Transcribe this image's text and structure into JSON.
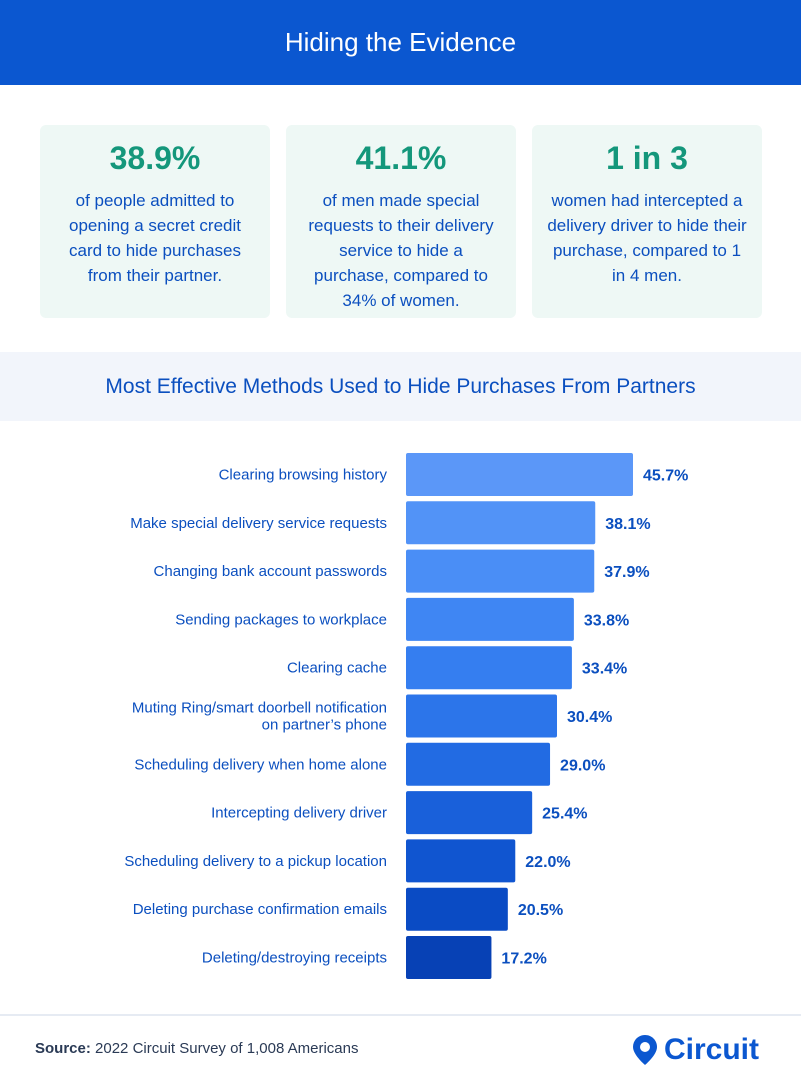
{
  "header": {
    "title": "Hiding the Evidence"
  },
  "stats": [
    {
      "value": "38.9%",
      "description": "of people admitted to opening a secret credit card to hide purchases from their partner."
    },
    {
      "value": "41.1%",
      "description": "of men made special requests to their delivery service to hide a purchase, compared to 34% of women."
    },
    {
      "value": "1 in 3",
      "description": "women had intercepted a delivery driver to hide their purchase, compared to 1 in 4 men."
    }
  ],
  "chart_data": {
    "type": "bar",
    "orientation": "horizontal",
    "title": "Most Effective Methods Used to Hide Purchases From Partners",
    "categories": [
      "Clearing browsing history",
      "Make special delivery service requests",
      "Changing bank account passwords",
      "Sending packages to workplace",
      "Clearing cache",
      "Muting Ring/smart doorbell notification on partner’s phone",
      "Scheduling delivery when home alone",
      "Intercepting delivery driver",
      "Scheduling delivery to a pickup location",
      "Deleting purchase confirmation emails",
      "Deleting/destroying receipts"
    ],
    "category_lines": [
      [
        "Clearing browsing history"
      ],
      [
        "Make special delivery service requests"
      ],
      [
        "Changing bank account passwords"
      ],
      [
        "Sending packages to workplace"
      ],
      [
        "Clearing cache"
      ],
      [
        "Muting Ring/smart doorbell notification",
        "on partner’s phone"
      ],
      [
        "Scheduling delivery when home alone"
      ],
      [
        "Intercepting delivery driver"
      ],
      [
        "Scheduling delivery to a pickup location"
      ],
      [
        "Deleting purchase confirmation emails"
      ],
      [
        "Deleting/destroying receipts"
      ]
    ],
    "values": [
      45.7,
      38.1,
      37.9,
      33.8,
      33.4,
      30.4,
      29.0,
      25.4,
      22.0,
      20.5,
      17.2
    ],
    "value_labels": [
      "45.7%",
      "38.1%",
      "37.9%",
      "33.8%",
      "33.4%",
      "30.4%",
      "29.0%",
      "25.4%",
      "22.0%",
      "20.5%",
      "17.2%"
    ],
    "bar_colors": [
      "#5b97f8",
      "#5293f7",
      "#4a8ef6",
      "#3f86f3",
      "#357ef0",
      "#2c75ea",
      "#226be3",
      "#1960da",
      "#1055d0",
      "#0a4bc4",
      "#0741b5"
    ],
    "xlim": [
      0,
      50
    ],
    "grid": false,
    "legend": "none"
  },
  "footer": {
    "source_label": "Source:",
    "source_text": " 2022 Circuit Survey of 1,008 Americans",
    "logo_text": "Circuit"
  },
  "colors": {
    "header_bg": "#0b57d0",
    "stat_value": "#14977b",
    "text_blue": "#0b4fbf",
    "card_bg": "#eef8f5"
  }
}
